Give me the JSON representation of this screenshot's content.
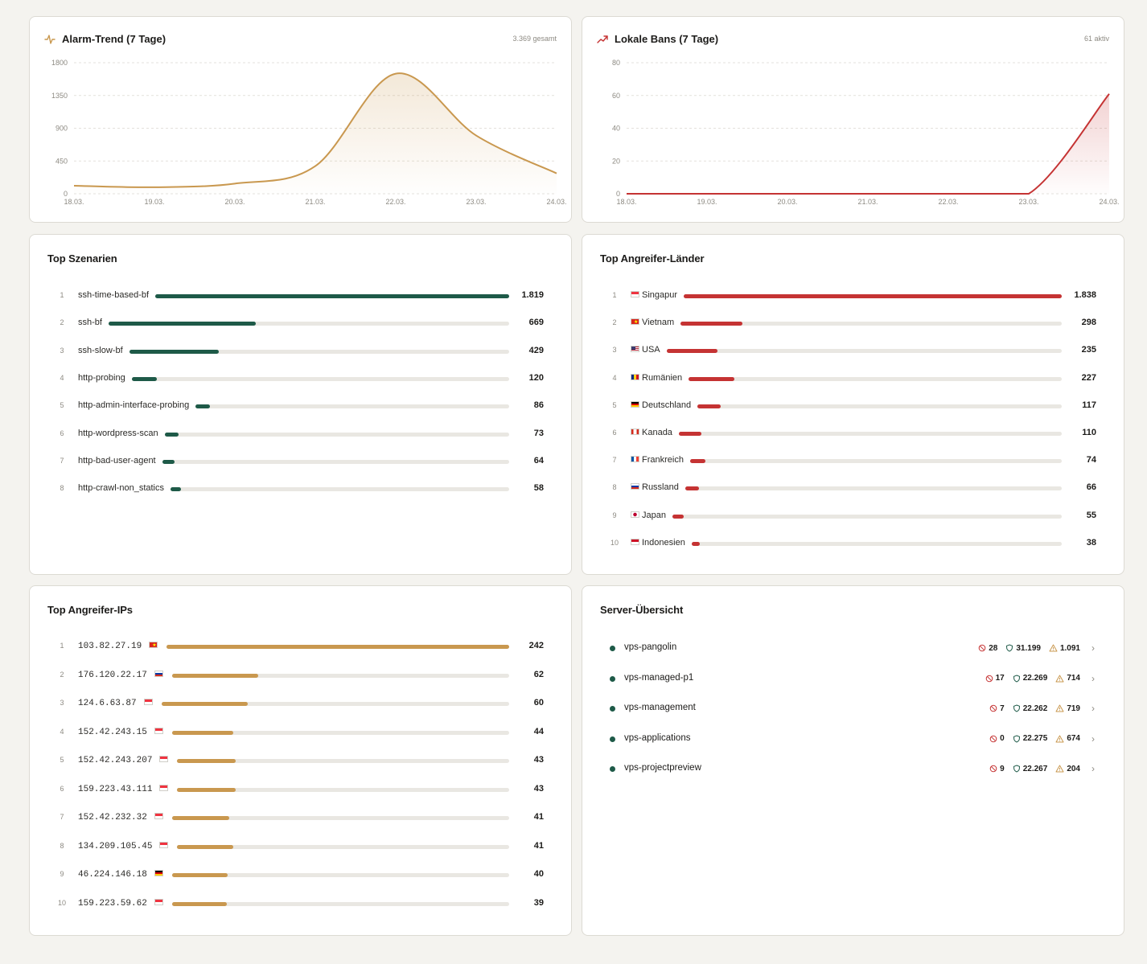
{
  "colors": {
    "gold": "#c9984f",
    "red": "#c53333",
    "green": "#1e5a48",
    "track": "#e9e7e2",
    "background": "#f4f3ef"
  },
  "alarm": {
    "title": "Alarm-Trend (7 Tage)",
    "meta": "3.369 gesamt",
    "icon": "activity-icon"
  },
  "bans": {
    "title": "Lokale Bans (7 Tage)",
    "meta": "61 aktiv",
    "icon": "trending-up-icon"
  },
  "chart_data": [
    {
      "type": "area",
      "x": [
        "18.03.",
        "19.03.",
        "20.03.",
        "21.03.",
        "22.03.",
        "23.03.",
        "24.03."
      ],
      "values": [
        110,
        90,
        140,
        380,
        1650,
        800,
        280
      ],
      "yticks": [
        0,
        450,
        900,
        1350,
        1800
      ],
      "ylim": [
        0,
        1800
      ],
      "grid": true,
      "color": "#c9984f"
    },
    {
      "type": "area",
      "x": [
        "18.03.",
        "19.03.",
        "20.03.",
        "21.03.",
        "22.03.",
        "23.03.",
        "24.03."
      ],
      "values": [
        0,
        0,
        0,
        0,
        0,
        0,
        61
      ],
      "yticks": [
        0,
        20,
        40,
        60,
        80
      ],
      "ylim": [
        0,
        80
      ],
      "grid": true,
      "color": "#c53333"
    }
  ],
  "scenarios": {
    "title": "Top Szenarien",
    "max": 1819,
    "items": [
      {
        "rank": "1",
        "name": "ssh-time-based-bf",
        "value": 1819,
        "display": "1.819"
      },
      {
        "rank": "2",
        "name": "ssh-bf",
        "value": 669,
        "display": "669"
      },
      {
        "rank": "3",
        "name": "ssh-slow-bf",
        "value": 429,
        "display": "429"
      },
      {
        "rank": "4",
        "name": "http-probing",
        "value": 120,
        "display": "120"
      },
      {
        "rank": "5",
        "name": "http-admin-interface-probing",
        "value": 86,
        "display": "86"
      },
      {
        "rank": "6",
        "name": "http-wordpress-scan",
        "value": 73,
        "display": "73"
      },
      {
        "rank": "7",
        "name": "http-bad-user-agent",
        "value": 64,
        "display": "64"
      },
      {
        "rank": "8",
        "name": "http-crawl-non_statics",
        "value": 58,
        "display": "58"
      }
    ]
  },
  "countries": {
    "title": "Top Angreifer-Länder",
    "max": 1838,
    "items": [
      {
        "rank": "1",
        "name": "Singapur",
        "flag": "sg",
        "value": 1838,
        "display": "1.838"
      },
      {
        "rank": "2",
        "name": "Vietnam",
        "flag": "vn",
        "value": 298,
        "display": "298"
      },
      {
        "rank": "3",
        "name": "USA",
        "flag": "us",
        "value": 235,
        "display": "235"
      },
      {
        "rank": "4",
        "name": "Rumänien",
        "flag": "ro",
        "value": 227,
        "display": "227"
      },
      {
        "rank": "5",
        "name": "Deutschland",
        "flag": "de",
        "value": 117,
        "display": "117"
      },
      {
        "rank": "6",
        "name": "Kanada",
        "flag": "ca",
        "value": 110,
        "display": "110"
      },
      {
        "rank": "7",
        "name": "Frankreich",
        "flag": "fr",
        "value": 74,
        "display": "74"
      },
      {
        "rank": "8",
        "name": "Russland",
        "flag": "ru",
        "value": 66,
        "display": "66"
      },
      {
        "rank": "9",
        "name": "Japan",
        "flag": "jp",
        "value": 55,
        "display": "55"
      },
      {
        "rank": "10",
        "name": "Indonesien",
        "flag": "id",
        "value": 38,
        "display": "38"
      }
    ]
  },
  "ips": {
    "title": "Top Angreifer-IPs",
    "max": 242,
    "items": [
      {
        "rank": "1",
        "name": "103.82.27.19",
        "flag": "vn",
        "value": 242,
        "display": "242"
      },
      {
        "rank": "2",
        "name": "176.120.22.17",
        "flag": "ru",
        "value": 62,
        "display": "62"
      },
      {
        "rank": "3",
        "name": "124.6.63.87",
        "flag": "sg",
        "value": 60,
        "display": "60"
      },
      {
        "rank": "4",
        "name": "152.42.243.15",
        "flag": "sg",
        "value": 44,
        "display": "44"
      },
      {
        "rank": "5",
        "name": "152.42.243.207",
        "flag": "sg",
        "value": 43,
        "display": "43"
      },
      {
        "rank": "6",
        "name": "159.223.43.111",
        "flag": "sg",
        "value": 43,
        "display": "43"
      },
      {
        "rank": "7",
        "name": "152.42.232.32",
        "flag": "sg",
        "value": 41,
        "display": "41"
      },
      {
        "rank": "8",
        "name": "134.209.105.45",
        "flag": "sg",
        "value": 41,
        "display": "41"
      },
      {
        "rank": "9",
        "name": "46.224.146.18",
        "flag": "de",
        "value": 40,
        "display": "40"
      },
      {
        "rank": "10",
        "name": "159.223.59.62",
        "flag": "sg",
        "value": 39,
        "display": "39"
      }
    ]
  },
  "servers": {
    "title": "Server-Übersicht",
    "items": [
      {
        "name": "vps-pangolin",
        "bans": "28",
        "decisions": "31.199",
        "alerts": "1.091"
      },
      {
        "name": "vps-managed-p1",
        "bans": "17",
        "decisions": "22.269",
        "alerts": "714"
      },
      {
        "name": "vps-management",
        "bans": "7",
        "decisions": "22.262",
        "alerts": "719"
      },
      {
        "name": "vps-applications",
        "bans": "0",
        "decisions": "22.275",
        "alerts": "674"
      },
      {
        "name": "vps-projectpreview",
        "bans": "9",
        "decisions": "22.267",
        "alerts": "204"
      }
    ]
  }
}
